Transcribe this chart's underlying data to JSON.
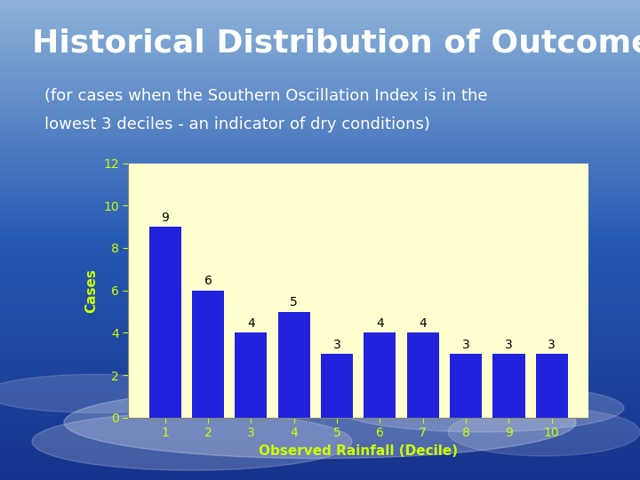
{
  "title": "Historical Distribution of Outcomes",
  "subtitle_line1": "(for cases when the Southern Oscillation Index is in the",
  "subtitle_line2": "lowest 3 deciles - an indicator of dry conditions)",
  "categories": [
    1,
    2,
    3,
    4,
    5,
    6,
    7,
    8,
    9,
    10
  ],
  "values": [
    9,
    6,
    4,
    5,
    3,
    4,
    4,
    3,
    3,
    3
  ],
  "bar_color": "#2222DD",
  "xlabel": "Observed Rainfall (Decile)",
  "ylabel": "Cases",
  "ylim": [
    0,
    12
  ],
  "yticks": [
    0,
    2,
    4,
    6,
    8,
    10,
    12
  ],
  "plot_bg_color": "#FFFFD0",
  "title_color": "#FFFFFF",
  "subtitle_color": "#FFFFFF",
  "axis_label_color": "#CCFF00",
  "tick_label_color": "#CCFF00",
  "bar_label_color": "#000000",
  "title_fontsize": 26,
  "subtitle_fontsize": 13,
  "axis_label_fontsize": 11,
  "tick_fontsize": 10,
  "bar_label_fontsize": 10,
  "sky_top_color": "#1a3a9a",
  "sky_mid_color": "#2255bb",
  "sky_bot_color": "#6699cc"
}
